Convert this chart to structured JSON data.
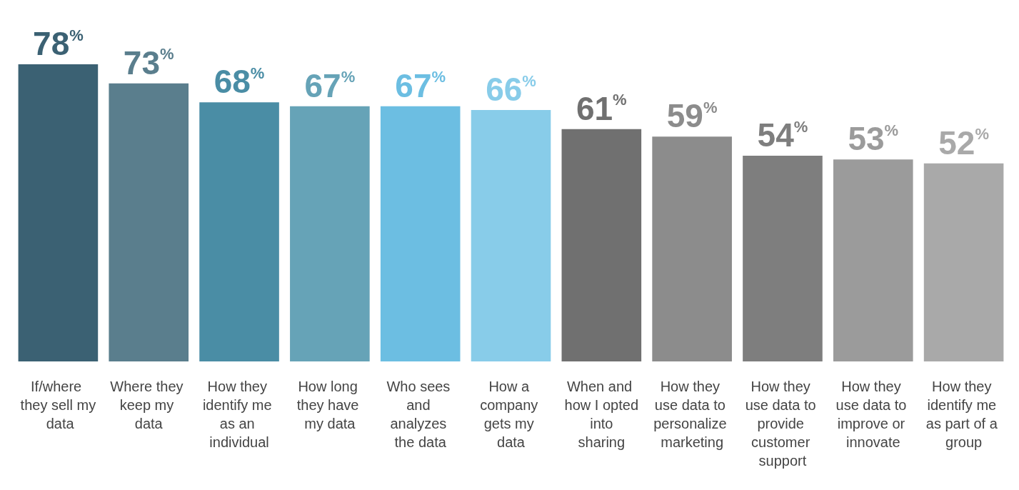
{
  "chart_data": {
    "type": "bar",
    "categories": [
      "If/where they sell my data",
      "Where they keep my data",
      "How they identify me as an individual",
      "How long they have my data",
      "Who sees and analyzes the data",
      "How a company gets my data",
      "When and how I opted into sharing",
      "How they use data to personalize marketing",
      "How they use data to provide customer support",
      "How they use data to improve or innovate",
      "How they identify me as part of a group"
    ],
    "values": [
      78,
      73,
      68,
      67,
      67,
      66,
      61,
      59,
      54,
      53,
      52
    ],
    "value_labels": [
      "78%",
      "73%",
      "68%",
      "67%",
      "67%",
      "66%",
      "61%",
      "59%",
      "54%",
      "53%",
      "52%"
    ],
    "colors": [
      "#3b6173",
      "#5a7e8d",
      "#4a8da5",
      "#66a3b7",
      "#6cbee2",
      "#88cce9",
      "#707070",
      "#8c8c8c",
      "#7e7e7e",
      "#9b9b9b",
      "#a9a9a9"
    ],
    "orientation": "vertical"
  }
}
